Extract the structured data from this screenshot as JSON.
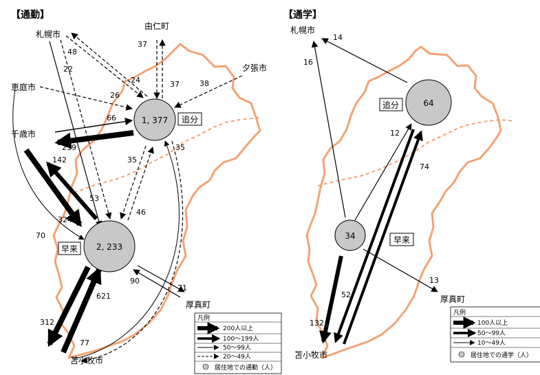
{
  "commute": {
    "title": "【通勤】",
    "places": {
      "sapporo": "札幌市",
      "eniwa": "恵庭市",
      "chitose": "千歳市",
      "tomakomai": "苫小牧市",
      "yuni": "由仁町",
      "yubari": "夕張市",
      "atsuma": "厚真町"
    },
    "districts": {
      "oiwake": "追分",
      "hayakita": "早来"
    },
    "residents": {
      "oiwake": "1, 377",
      "hayakita": "2, 233"
    },
    "flows": {
      "sapporo_hayakita": "22",
      "sapporo_oiwake_a": "48",
      "sapporo_oiwake_b": "24",
      "eniwa_oiwake": "26",
      "yuni_oiwake_out": "37",
      "yuni_oiwake_in": "37",
      "yubari_oiwake": "38",
      "oiwake_chitose_in": "66",
      "oiwake_chitose_out": "239",
      "chitose_hayakita": "142",
      "hayakita_chitose": "53",
      "chitose_hayakita_in": "324",
      "oiwake_hayakita_a": "35",
      "oiwake_hayakita_b": "46",
      "tomakomai_oiwake": "35",
      "eniwa_hayakita": "70",
      "hayakita_atsuma": "90",
      "atsuma_hayakita": "71",
      "tomakomai_hayakita": "621",
      "hayakita_tomakomai": "312",
      "oiwake_tomakomai": "77"
    },
    "legend": {
      "title": "凡例",
      "items": [
        "200人以上",
        "100～199人",
        "50～99人",
        "20～49人",
        "居住地での通勤（人）"
      ]
    }
  },
  "school": {
    "title": "【通学】",
    "places": {
      "sapporo": "札幌市",
      "tomakomai": "苫小牧市",
      "atsuma": "厚真町"
    },
    "districts": {
      "oiwake": "追分",
      "hayakita": "早来"
    },
    "residents": {
      "oiwake": "64",
      "hayakita": "34"
    },
    "flows": {
      "oiwake_sapporo": "14",
      "hayakita_sapporo": "16",
      "hayakita_oiwake": "12",
      "tomakomai_oiwake": "74",
      "hayakita_atsuma": "13",
      "oiwake_tomakomai": "52",
      "hayakita_tomakomai": "132"
    },
    "legend": {
      "title": "凡例",
      "items": [
        "100人以上",
        "50～99人",
        "10～49人",
        "居住地での通学（人）"
      ]
    }
  },
  "colors": {
    "boundary": "#f4a273",
    "circle": "#c8c8c8",
    "arrow": "#000000"
  }
}
